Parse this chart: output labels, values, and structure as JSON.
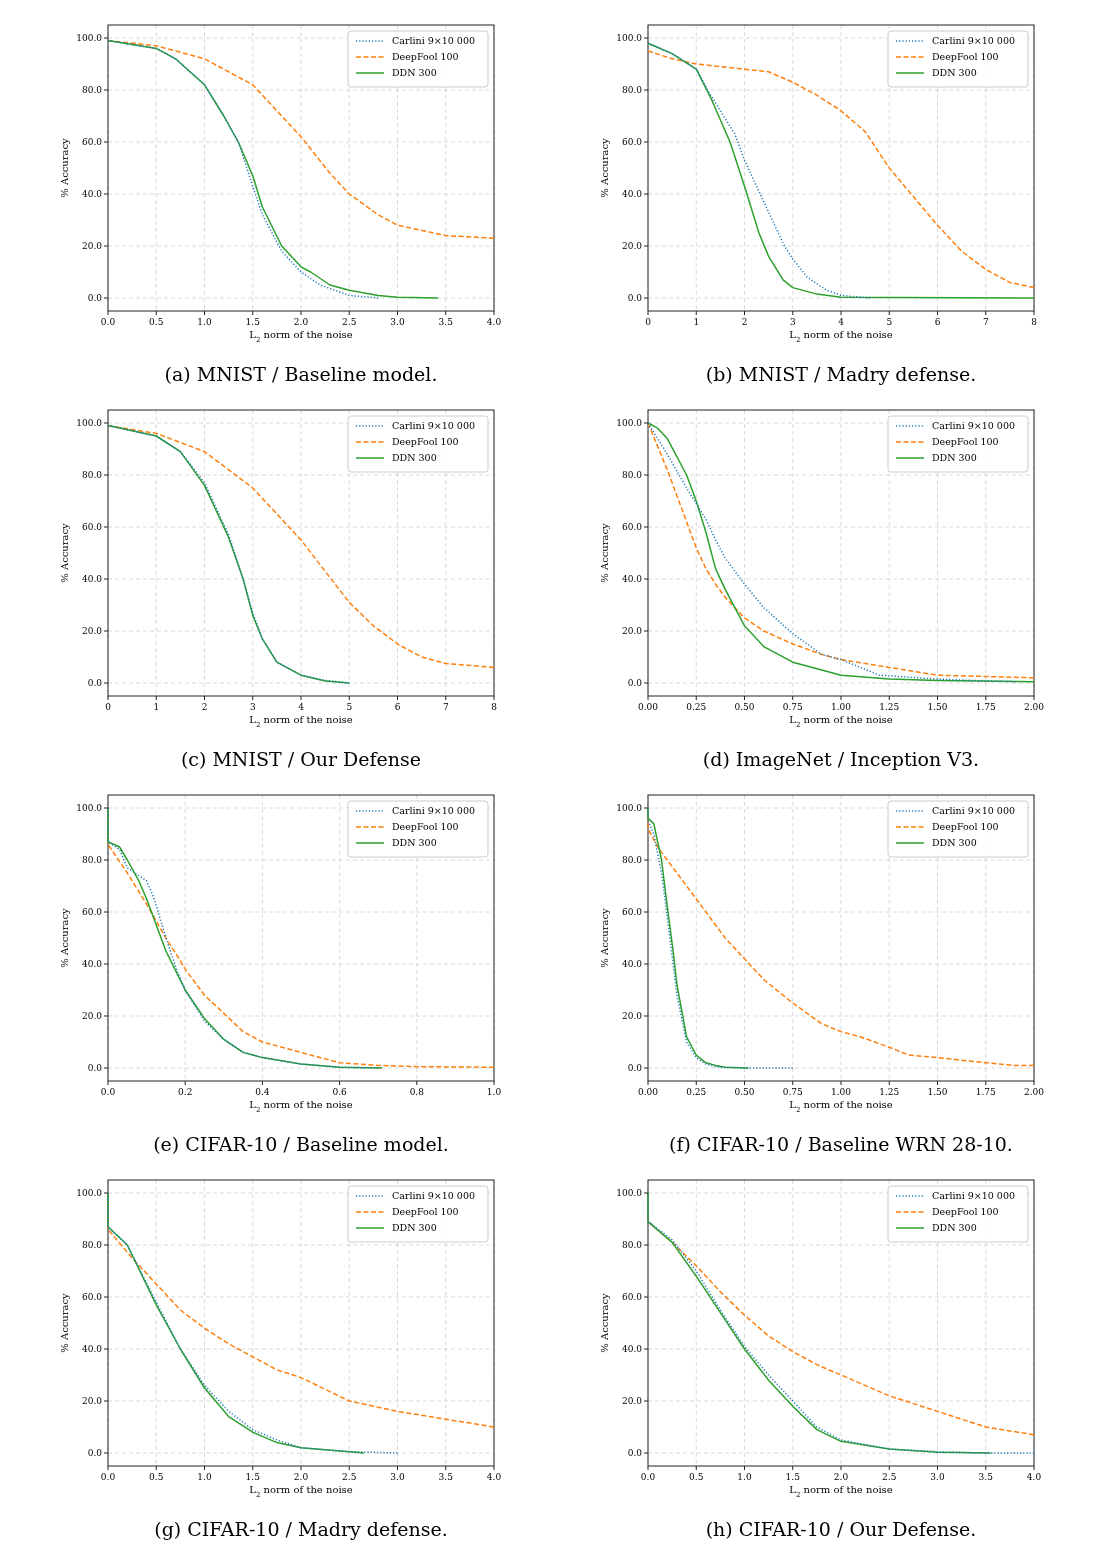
{
  "chart_data": [
    {
      "type": "line",
      "title": "(a) MNIST / Baseline model.",
      "xlabel": "L$_{2}$ norm of the noise",
      "ylabel": "% Accuracy",
      "xlim": [
        0,
        4
      ],
      "ylim": [
        -5,
        105
      ],
      "xticks": [
        {
          "value": 0,
          "label": "0.0"
        },
        0.5,
        {
          "value": 1,
          "label": "1.0"
        },
        1.5,
        {
          "value": 2,
          "label": "2.0"
        },
        2.5,
        {
          "value": 3,
          "label": "3.0"
        },
        3.5,
        {
          "value": 4,
          "label": "4.0"
        }
      ],
      "yticks": [
        {
          "value": 0,
          "label": "0.0"
        },
        {
          "value": 20,
          "label": "20.0"
        },
        {
          "value": 40,
          "label": "40.0"
        },
        {
          "value": 60,
          "label": "60.0"
        },
        {
          "value": 80,
          "label": "80.0"
        },
        {
          "value": 100,
          "label": "100.0"
        }
      ],
      "grid": true,
      "legend": "top right",
      "series": [
        {
          "name": "Carlini 9×10 000",
          "color": "#1f77b4",
          "line_style": "dotted",
          "x": [
            0,
            0.5,
            0.7,
            1.0,
            1.2,
            1.35,
            1.5,
            1.6,
            1.8,
            2.0,
            2.2,
            2.5,
            2.8
          ],
          "values": [
            99,
            96,
            92,
            82,
            70,
            60,
            43,
            32,
            18,
            10,
            5,
            1,
            0
          ]
        },
        {
          "name": "DeepFool 100",
          "color": "#ff7f0e",
          "line_style": "dashed",
          "x": [
            0,
            0.5,
            1.0,
            1.5,
            1.8,
            2.0,
            2.3,
            2.5,
            2.8,
            3.0,
            3.5,
            4.0
          ],
          "values": [
            99,
            97,
            92,
            82,
            70,
            62,
            48,
            40,
            32,
            28,
            24,
            23
          ]
        },
        {
          "name": "DDN 300",
          "color": "#2ca02c",
          "line_style": "solid",
          "x": [
            0,
            0.5,
            0.7,
            1.0,
            1.2,
            1.35,
            1.5,
            1.6,
            1.8,
            2.0,
            2.1,
            2.3,
            2.5,
            2.8,
            3.0,
            3.42
          ],
          "values": [
            99,
            96,
            92,
            82,
            70,
            60,
            47,
            35,
            20,
            12,
            10,
            5,
            3,
            1,
            0.3,
            0
          ]
        }
      ]
    },
    {
      "type": "line",
      "title": "(b) MNIST / Madry defense.",
      "xlabel": "L$_{2}$ norm of the noise",
      "ylabel": "% Accuracy",
      "xlim": [
        0,
        8
      ],
      "ylim": [
        -5,
        105
      ],
      "xticks": [
        0,
        1,
        2,
        3,
        4,
        5,
        6,
        7,
        8
      ],
      "yticks": [
        {
          "value": 0,
          "label": "0.0"
        },
        {
          "value": 20,
          "label": "20.0"
        },
        {
          "value": 40,
          "label": "40.0"
        },
        {
          "value": 60,
          "label": "60.0"
        },
        {
          "value": 80,
          "label": "80.0"
        },
        {
          "value": 100,
          "label": "100.0"
        }
      ],
      "grid": true,
      "legend": "top right",
      "series": [
        {
          "name": "Carlini 9×10 000",
          "color": "#1f77b4",
          "line_style": "dotted",
          "x": [
            0,
            0.5,
            1,
            1.3,
            1.8,
            2,
            2.5,
            2.8,
            3,
            3.3,
            3.7,
            4,
            4.6
          ],
          "values": [
            98,
            94,
            88,
            78,
            63,
            53,
            33,
            21,
            15,
            8,
            3,
            1,
            0
          ]
        },
        {
          "name": "DeepFool 100",
          "color": "#ff7f0e",
          "line_style": "dashed",
          "x": [
            0,
            0.5,
            1,
            2,
            2.5,
            3,
            3.5,
            4,
            4.5,
            5,
            5.5,
            6,
            6.5,
            7,
            7.5,
            8
          ],
          "values": [
            95,
            92,
            90,
            88,
            87,
            83,
            78,
            72,
            64,
            50,
            39,
            28,
            18,
            11,
            6,
            4
          ]
        },
        {
          "name": "DDN 300",
          "color": "#2ca02c",
          "line_style": "solid",
          "x": [
            0,
            0.5,
            1,
            1.3,
            1.7,
            2,
            2.3,
            2.5,
            2.8,
            3,
            3.5,
            4,
            8
          ],
          "values": [
            98,
            94,
            88,
            77,
            60,
            43,
            25,
            16,
            7,
            4,
            1.5,
            0.3,
            0
          ]
        }
      ]
    },
    {
      "type": "line",
      "title": "(c) MNIST / Our Defense",
      "xlabel": "L$_{2}$ norm of the noise",
      "ylabel": "% Accuracy",
      "xlim": [
        0,
        8
      ],
      "ylim": [
        -5,
        105
      ],
      "xticks": [
        0,
        1,
        2,
        3,
        4,
        5,
        6,
        7,
        8
      ],
      "yticks": [
        {
          "value": 0,
          "label": "0.0"
        },
        {
          "value": 20,
          "label": "20.0"
        },
        {
          "value": 40,
          "label": "40.0"
        },
        {
          "value": 60,
          "label": "60.0"
        },
        {
          "value": 80,
          "label": "80.0"
        },
        {
          "value": 100,
          "label": "100.0"
        }
      ],
      "grid": true,
      "legend": "top right",
      "series": [
        {
          "name": "Carlini 9×10 000",
          "color": "#1f77b4",
          "line_style": "dotted",
          "x": [
            0,
            1,
            1.5,
            2,
            2.5,
            2.8,
            3,
            3.2,
            3.5,
            4,
            4.5,
            5
          ],
          "values": [
            99,
            95,
            89,
            77,
            57,
            40,
            27,
            17,
            8,
            3,
            1,
            0
          ]
        },
        {
          "name": "DeepFool 100",
          "color": "#ff7f0e",
          "line_style": "dashed",
          "x": [
            0,
            1,
            2,
            2.5,
            3,
            3.5,
            4,
            4.5,
            5,
            5.5,
            6,
            6.5,
            7,
            8
          ],
          "values": [
            99,
            96,
            89,
            82,
            75,
            65,
            55,
            43,
            31,
            22,
            15,
            10,
            7.5,
            6
          ]
        },
        {
          "name": "DDN 300",
          "color": "#2ca02c",
          "line_style": "solid",
          "x": [
            0,
            1,
            1.5,
            2,
            2.5,
            2.8,
            3,
            3.2,
            3.5,
            4,
            4.5,
            5
          ],
          "values": [
            99,
            95,
            89,
            76,
            56,
            40,
            26,
            17,
            8,
            3,
            0.8,
            0
          ]
        }
      ]
    },
    {
      "type": "line",
      "title": "(d) ImageNet / Inception V3.",
      "xlabel": "L$_{2}$ norm of the noise",
      "ylabel": "% Accuracy",
      "xlim": [
        0,
        2
      ],
      "ylim": [
        -5,
        105
      ],
      "xticks": [
        {
          "value": 0,
          "label": "0.00"
        },
        0.25,
        {
          "value": 0.5,
          "label": "0.50"
        },
        0.75,
        {
          "value": 1,
          "label": "1.00"
        },
        1.25,
        {
          "value": 1.5,
          "label": "1.50"
        },
        1.75,
        {
          "value": 2,
          "label": "2.00"
        }
      ],
      "yticks": [
        {
          "value": 0,
          "label": "0.0"
        },
        {
          "value": 20,
          "label": "20.0"
        },
        {
          "value": 40,
          "label": "40.0"
        },
        {
          "value": 60,
          "label": "60.0"
        },
        {
          "value": 80,
          "label": "80.0"
        },
        {
          "value": 100,
          "label": "100.0"
        }
      ],
      "grid": true,
      "legend": "top right",
      "series": [
        {
          "name": "Carlini 9×10 000",
          "color": "#1f77b4",
          "line_style": "dotted",
          "x": [
            0,
            0.1,
            0.2,
            0.3,
            0.35,
            0.4,
            0.5,
            0.6,
            0.75,
            0.9,
            1.0,
            1.1,
            1.2,
            1.5,
            1.75,
            1.9
          ],
          "values": [
            100,
            88,
            75,
            63,
            55,
            48,
            38,
            29,
            19,
            11,
            9,
            6,
            3,
            1.5,
            0.8,
            0.5
          ]
        },
        {
          "name": "DeepFool 100",
          "color": "#ff7f0e",
          "line_style": "dashed",
          "x": [
            0,
            0.1,
            0.2,
            0.25,
            0.3,
            0.35,
            0.4,
            0.5,
            0.6,
            0.75,
            0.9,
            1.0,
            1.25,
            1.5,
            1.75,
            2.0
          ],
          "values": [
            100,
            82,
            62,
            52,
            44,
            38,
            33,
            25,
            20,
            15,
            11,
            9,
            6,
            3,
            2.5,
            2
          ]
        },
        {
          "name": "DDN 300",
          "color": "#2ca02c",
          "line_style": "solid",
          "x": [
            0,
            0.05,
            0.1,
            0.2,
            0.25,
            0.3,
            0.35,
            0.4,
            0.5,
            0.6,
            0.75,
            0.9,
            1.0,
            1.25,
            1.5,
            2.0
          ],
          "values": [
            100,
            98,
            94,
            80,
            70,
            58,
            44,
            36,
            22,
            14,
            8,
            5,
            3,
            1.5,
            1,
            0.5
          ]
        }
      ]
    },
    {
      "type": "line",
      "title": "(e) CIFAR-10 / Baseline model.",
      "xlabel": "L$_{2}$ norm of the noise",
      "ylabel": "% Accuracy",
      "xlim": [
        0,
        1
      ],
      "ylim": [
        -5,
        105
      ],
      "xticks": [
        {
          "value": 0,
          "label": "0.0"
        },
        0.2,
        0.4,
        0.6,
        0.8,
        {
          "value": 1,
          "label": "1.0"
        }
      ],
      "yticks": [
        {
          "value": 0,
          "label": "0.0"
        },
        {
          "value": 20,
          "label": "20.0"
        },
        {
          "value": 40,
          "label": "40.0"
        },
        {
          "value": 60,
          "label": "60.0"
        },
        {
          "value": 80,
          "label": "80.0"
        },
        {
          "value": 100,
          "label": "100.0"
        }
      ],
      "grid": true,
      "legend": "top right",
      "series": [
        {
          "name": "Carlini 9×10 000",
          "color": "#1f77b4",
          "line_style": "dotted",
          "x": [
            0,
            0,
            0.03,
            0.05,
            0.08,
            0.1,
            0.12,
            0.15,
            0.18,
            0.2,
            0.25,
            0.3,
            0.35,
            0.4,
            0.5,
            0.6,
            0.7
          ],
          "values": [
            100,
            87,
            84,
            77,
            74,
            72,
            65,
            50,
            37,
            30,
            18,
            11,
            6,
            4,
            1.5,
            0.3,
            0
          ]
        },
        {
          "name": "DeepFool 100",
          "color": "#ff7f0e",
          "line_style": "dashed",
          "x": [
            0,
            0,
            0.05,
            0.1,
            0.15,
            0.18,
            0.2,
            0.25,
            0.3,
            0.35,
            0.4,
            0.5,
            0.6,
            0.7,
            0.8,
            1.0
          ],
          "values": [
            100,
            86,
            75,
            63,
            50,
            43,
            38,
            28,
            21,
            14,
            10,
            6,
            2,
            1,
            0.5,
            0.3
          ]
        },
        {
          "name": "DDN 300",
          "color": "#2ca02c",
          "line_style": "solid",
          "x": [
            0,
            0,
            0.03,
            0.05,
            0.08,
            0.1,
            0.12,
            0.15,
            0.18,
            0.2,
            0.25,
            0.3,
            0.35,
            0.4,
            0.5,
            0.6,
            0.71
          ],
          "values": [
            100,
            87,
            85,
            80,
            72,
            65,
            57,
            45,
            36,
            30,
            19,
            11,
            6,
            4,
            1.5,
            0.3,
            0
          ]
        }
      ]
    },
    {
      "type": "line",
      "title": "(f) CIFAR-10 / Baseline WRN 28-10.",
      "xlabel": "L$_{2}$ norm of the noise",
      "ylabel": "% Accuracy",
      "xlim": [
        0,
        2
      ],
      "ylim": [
        -5,
        105
      ],
      "xticks": [
        {
          "value": 0,
          "label": "0.00"
        },
        0.25,
        {
          "value": 0.5,
          "label": "0.50"
        },
        0.75,
        {
          "value": 1,
          "label": "1.00"
        },
        1.25,
        {
          "value": 1.5,
          "label": "1.50"
        },
        1.75,
        {
          "value": 2,
          "label": "2.00"
        }
      ],
      "yticks": [
        {
          "value": 0,
          "label": "0.0"
        },
        {
          "value": 20,
          "label": "20.0"
        },
        {
          "value": 40,
          "label": "40.0"
        },
        {
          "value": 60,
          "label": "60.0"
        },
        {
          "value": 80,
          "label": "80.0"
        },
        {
          "value": 100,
          "label": "100.0"
        }
      ],
      "grid": true,
      "legend": "top right",
      "series": [
        {
          "name": "Carlini 9×10 000",
          "color": "#1f77b4",
          "line_style": "dotted",
          "x": [
            0,
            0,
            0.03,
            0.07,
            0.1,
            0.13,
            0.15,
            0.18,
            0.2,
            0.25,
            0.3,
            0.35,
            0.4,
            0.5,
            0.75
          ],
          "values": [
            100,
            95,
            90,
            75,
            58,
            40,
            28,
            17,
            10,
            4,
            1.5,
            0.5,
            0.2,
            0,
            0
          ]
        },
        {
          "name": "DeepFool 100",
          "color": "#ff7f0e",
          "line_style": "dashed",
          "x": [
            0,
            0,
            0.05,
            0.1,
            0.2,
            0.3,
            0.4,
            0.5,
            0.6,
            0.75,
            0.9,
            1.0,
            1.1,
            1.25,
            1.35,
            1.5,
            1.75,
            1.9,
            2.0
          ],
          "values": [
            100,
            92,
            85,
            80,
            70,
            60,
            50,
            42,
            34,
            25,
            17,
            14,
            12,
            8,
            5,
            4,
            2,
            1,
            1
          ]
        },
        {
          "name": "DDN 300",
          "color": "#2ca02c",
          "line_style": "solid",
          "x": [
            0,
            0,
            0.03,
            0.07,
            0.1,
            0.13,
            0.15,
            0.18,
            0.2,
            0.25,
            0.3,
            0.35,
            0.4,
            0.52
          ],
          "values": [
            100,
            96,
            94,
            80,
            62,
            45,
            32,
            20,
            12,
            5,
            2,
            1,
            0.3,
            0
          ]
        }
      ]
    },
    {
      "type": "line",
      "title": "(g) CIFAR-10 / Madry defense.",
      "xlabel": "L$_{2}$ norm of the noise",
      "ylabel": "% Accuracy",
      "xlim": [
        0,
        4
      ],
      "ylim": [
        -5,
        105
      ],
      "xticks": [
        {
          "value": 0,
          "label": "0.0"
        },
        0.5,
        {
          "value": 1,
          "label": "1.0"
        },
        1.5,
        {
          "value": 2,
          "label": "2.0"
        },
        2.5,
        {
          "value": 3,
          "label": "3.0"
        },
        3.5,
        {
          "value": 4,
          "label": "4.0"
        }
      ],
      "yticks": [
        {
          "value": 0,
          "label": "0.0"
        },
        {
          "value": 20,
          "label": "20.0"
        },
        {
          "value": 40,
          "label": "40.0"
        },
        {
          "value": 60,
          "label": "60.0"
        },
        {
          "value": 80,
          "label": "80.0"
        },
        {
          "value": 100,
          "label": "100.0"
        }
      ],
      "grid": true,
      "legend": "top right",
      "series": [
        {
          "name": "Carlini 9×10 000",
          "color": "#1f77b4",
          "line_style": "dotted",
          "x": [
            0,
            0,
            0.2,
            0.5,
            0.75,
            1.0,
            1.25,
            1.5,
            1.75,
            2.0,
            2.5,
            3.0
          ],
          "values": [
            100,
            87,
            80,
            58,
            40,
            26,
            16,
            9,
            5,
            2,
            0.5,
            0
          ]
        },
        {
          "name": "DeepFool 100",
          "color": "#ff7f0e",
          "line_style": "dashed",
          "x": [
            0,
            0,
            0.25,
            0.5,
            0.75,
            1.0,
            1.25,
            1.5,
            1.75,
            2.0,
            2.5,
            3.0,
            3.5,
            4.0
          ],
          "values": [
            100,
            86,
            75,
            65,
            55,
            48,
            42,
            37,
            32,
            29,
            20,
            16,
            13,
            10
          ]
        },
        {
          "name": "DDN 300",
          "color": "#2ca02c",
          "line_style": "solid",
          "x": [
            0,
            0,
            0.2,
            0.5,
            0.75,
            1.0,
            1.25,
            1.5,
            1.75,
            2.0,
            2.5,
            2.65
          ],
          "values": [
            100,
            87,
            80,
            57,
            40,
            25,
            14,
            8,
            4,
            2,
            0.5,
            0
          ]
        }
      ]
    },
    {
      "type": "line",
      "title": "(h) CIFAR-10 / Our Defense.",
      "xlabel": "L$_{2}$ norm of the noise",
      "ylabel": "% Accuracy",
      "xlim": [
        0,
        4
      ],
      "ylim": [
        -5,
        105
      ],
      "xticks": [
        {
          "value": 0,
          "label": "0.0"
        },
        0.5,
        {
          "value": 1,
          "label": "1.0"
        },
        1.5,
        {
          "value": 2,
          "label": "2.0"
        },
        2.5,
        {
          "value": 3,
          "label": "3.0"
        },
        3.5,
        {
          "value": 4,
          "label": "4.0"
        }
      ],
      "yticks": [
        {
          "value": 0,
          "label": "0.0"
        },
        {
          "value": 20,
          "label": "20.0"
        },
        {
          "value": 40,
          "label": "40.0"
        },
        {
          "value": 60,
          "label": "60.0"
        },
        {
          "value": 80,
          "label": "80.0"
        },
        {
          "value": 100,
          "label": "100.0"
        }
      ],
      "grid": true,
      "legend": "top right",
      "series": [
        {
          "name": "Carlini 9×10 000",
          "color": "#1f77b4",
          "line_style": "dotted",
          "x": [
            0,
            0,
            0.25,
            0.5,
            0.75,
            1.0,
            1.25,
            1.5,
            1.75,
            2.0,
            2.5,
            3.0,
            3.5,
            4.0
          ],
          "values": [
            100,
            89,
            82,
            70,
            55,
            41,
            30,
            20,
            10,
            5,
            1.5,
            0.5,
            0,
            0
          ]
        },
        {
          "name": "DeepFool 100",
          "color": "#ff7f0e",
          "line_style": "dashed",
          "x": [
            0,
            0,
            0.25,
            0.5,
            0.75,
            1.0,
            1.25,
            1.5,
            1.75,
            2.0,
            2.5,
            3.0,
            3.5,
            4.0
          ],
          "values": [
            100,
            89,
            81,
            72,
            62,
            53,
            45,
            39,
            34,
            30,
            22,
            16,
            10,
            7
          ]
        },
        {
          "name": "DDN 300",
          "color": "#2ca02c",
          "line_style": "solid",
          "x": [
            0,
            0,
            0.25,
            0.5,
            0.75,
            1.0,
            1.25,
            1.5,
            1.75,
            2.0,
            2.5,
            3.0,
            3.55
          ],
          "values": [
            100,
            89,
            81,
            68,
            54,
            40,
            28,
            18,
            9,
            4.5,
            1.5,
            0.3,
            0
          ]
        }
      ]
    }
  ]
}
